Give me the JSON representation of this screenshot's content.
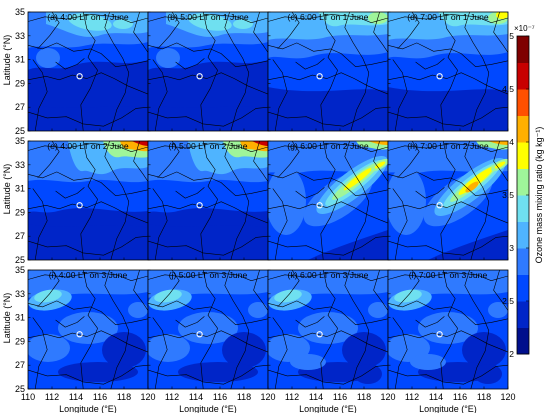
{
  "figure": {
    "panels": [
      {
        "label": "(a) 4:00 LT on 1 June",
        "pattern": "high-north-weak"
      },
      {
        "label": "(b) 5:00 LT on 1 June",
        "pattern": "high-north-weak"
      },
      {
        "label": "(c) 6:00 LT on 1 June",
        "pattern": "high-north-medium"
      },
      {
        "label": "(d) 7:00 LT on 1 June",
        "pattern": "high-north-medium"
      },
      {
        "label": "(e) 4:00 LT on 2 June",
        "pattern": "northeast-corner"
      },
      {
        "label": "(f) 5:00 LT on 2 June",
        "pattern": "northeast-corner"
      },
      {
        "label": "(g) 6:00 LT on 2 June",
        "pattern": "diagonal-band"
      },
      {
        "label": "(h) 7:00 LT on 2 June",
        "pattern": "diagonal-band-strong"
      },
      {
        "label": "(i) 4:00 LT on 3 June",
        "pattern": "diffuse"
      },
      {
        "label": "(j) 5:00 LT on 3 June",
        "pattern": "diffuse"
      },
      {
        "label": "(k) 6:00 LT on 3 June",
        "pattern": "diffuse"
      },
      {
        "label": "(l) 7:00 LT on 3 June",
        "pattern": "diffuse"
      }
    ],
    "x_axis": {
      "label": "Longitude (°E)",
      "ticks": [
        110,
        112,
        114,
        116,
        118,
        120
      ],
      "tick_labels": [
        "110",
        "112",
        "114",
        "116",
        "118",
        "120"
      ],
      "range": [
        110,
        120
      ]
    },
    "y_axis": {
      "label": "Latitude (°N)",
      "ticks": [
        25,
        27,
        29,
        31,
        33,
        35
      ],
      "tick_labels": [
        "25",
        "27",
        "29",
        "31",
        "33",
        "35"
      ],
      "range": [
        25,
        35
      ]
    },
    "colorbar": {
      "label": "Ozone mass mixing ratio (kg kg⁻¹)",
      "exponent": "×10⁻⁷",
      "ticks": [
        2,
        2.5,
        3,
        3.5,
        4,
        4.5,
        5
      ],
      "tick_labels": [
        "2",
        "2.5",
        "3",
        "3.5",
        "4",
        "4.5",
        "5"
      ],
      "range": [
        2,
        5
      ]
    },
    "site_marker": {
      "lon": 114.3,
      "lat": 29.6
    }
  },
  "colors": {
    "scale": [
      "#000f8c",
      "#0025c8",
      "#0048ff",
      "#2f7aff",
      "#4fb4ff",
      "#6fe0f0",
      "#9ff59a",
      "#ffff00",
      "#ffb000",
      "#ff5000",
      "#c80000",
      "#7f0000"
    ]
  }
}
